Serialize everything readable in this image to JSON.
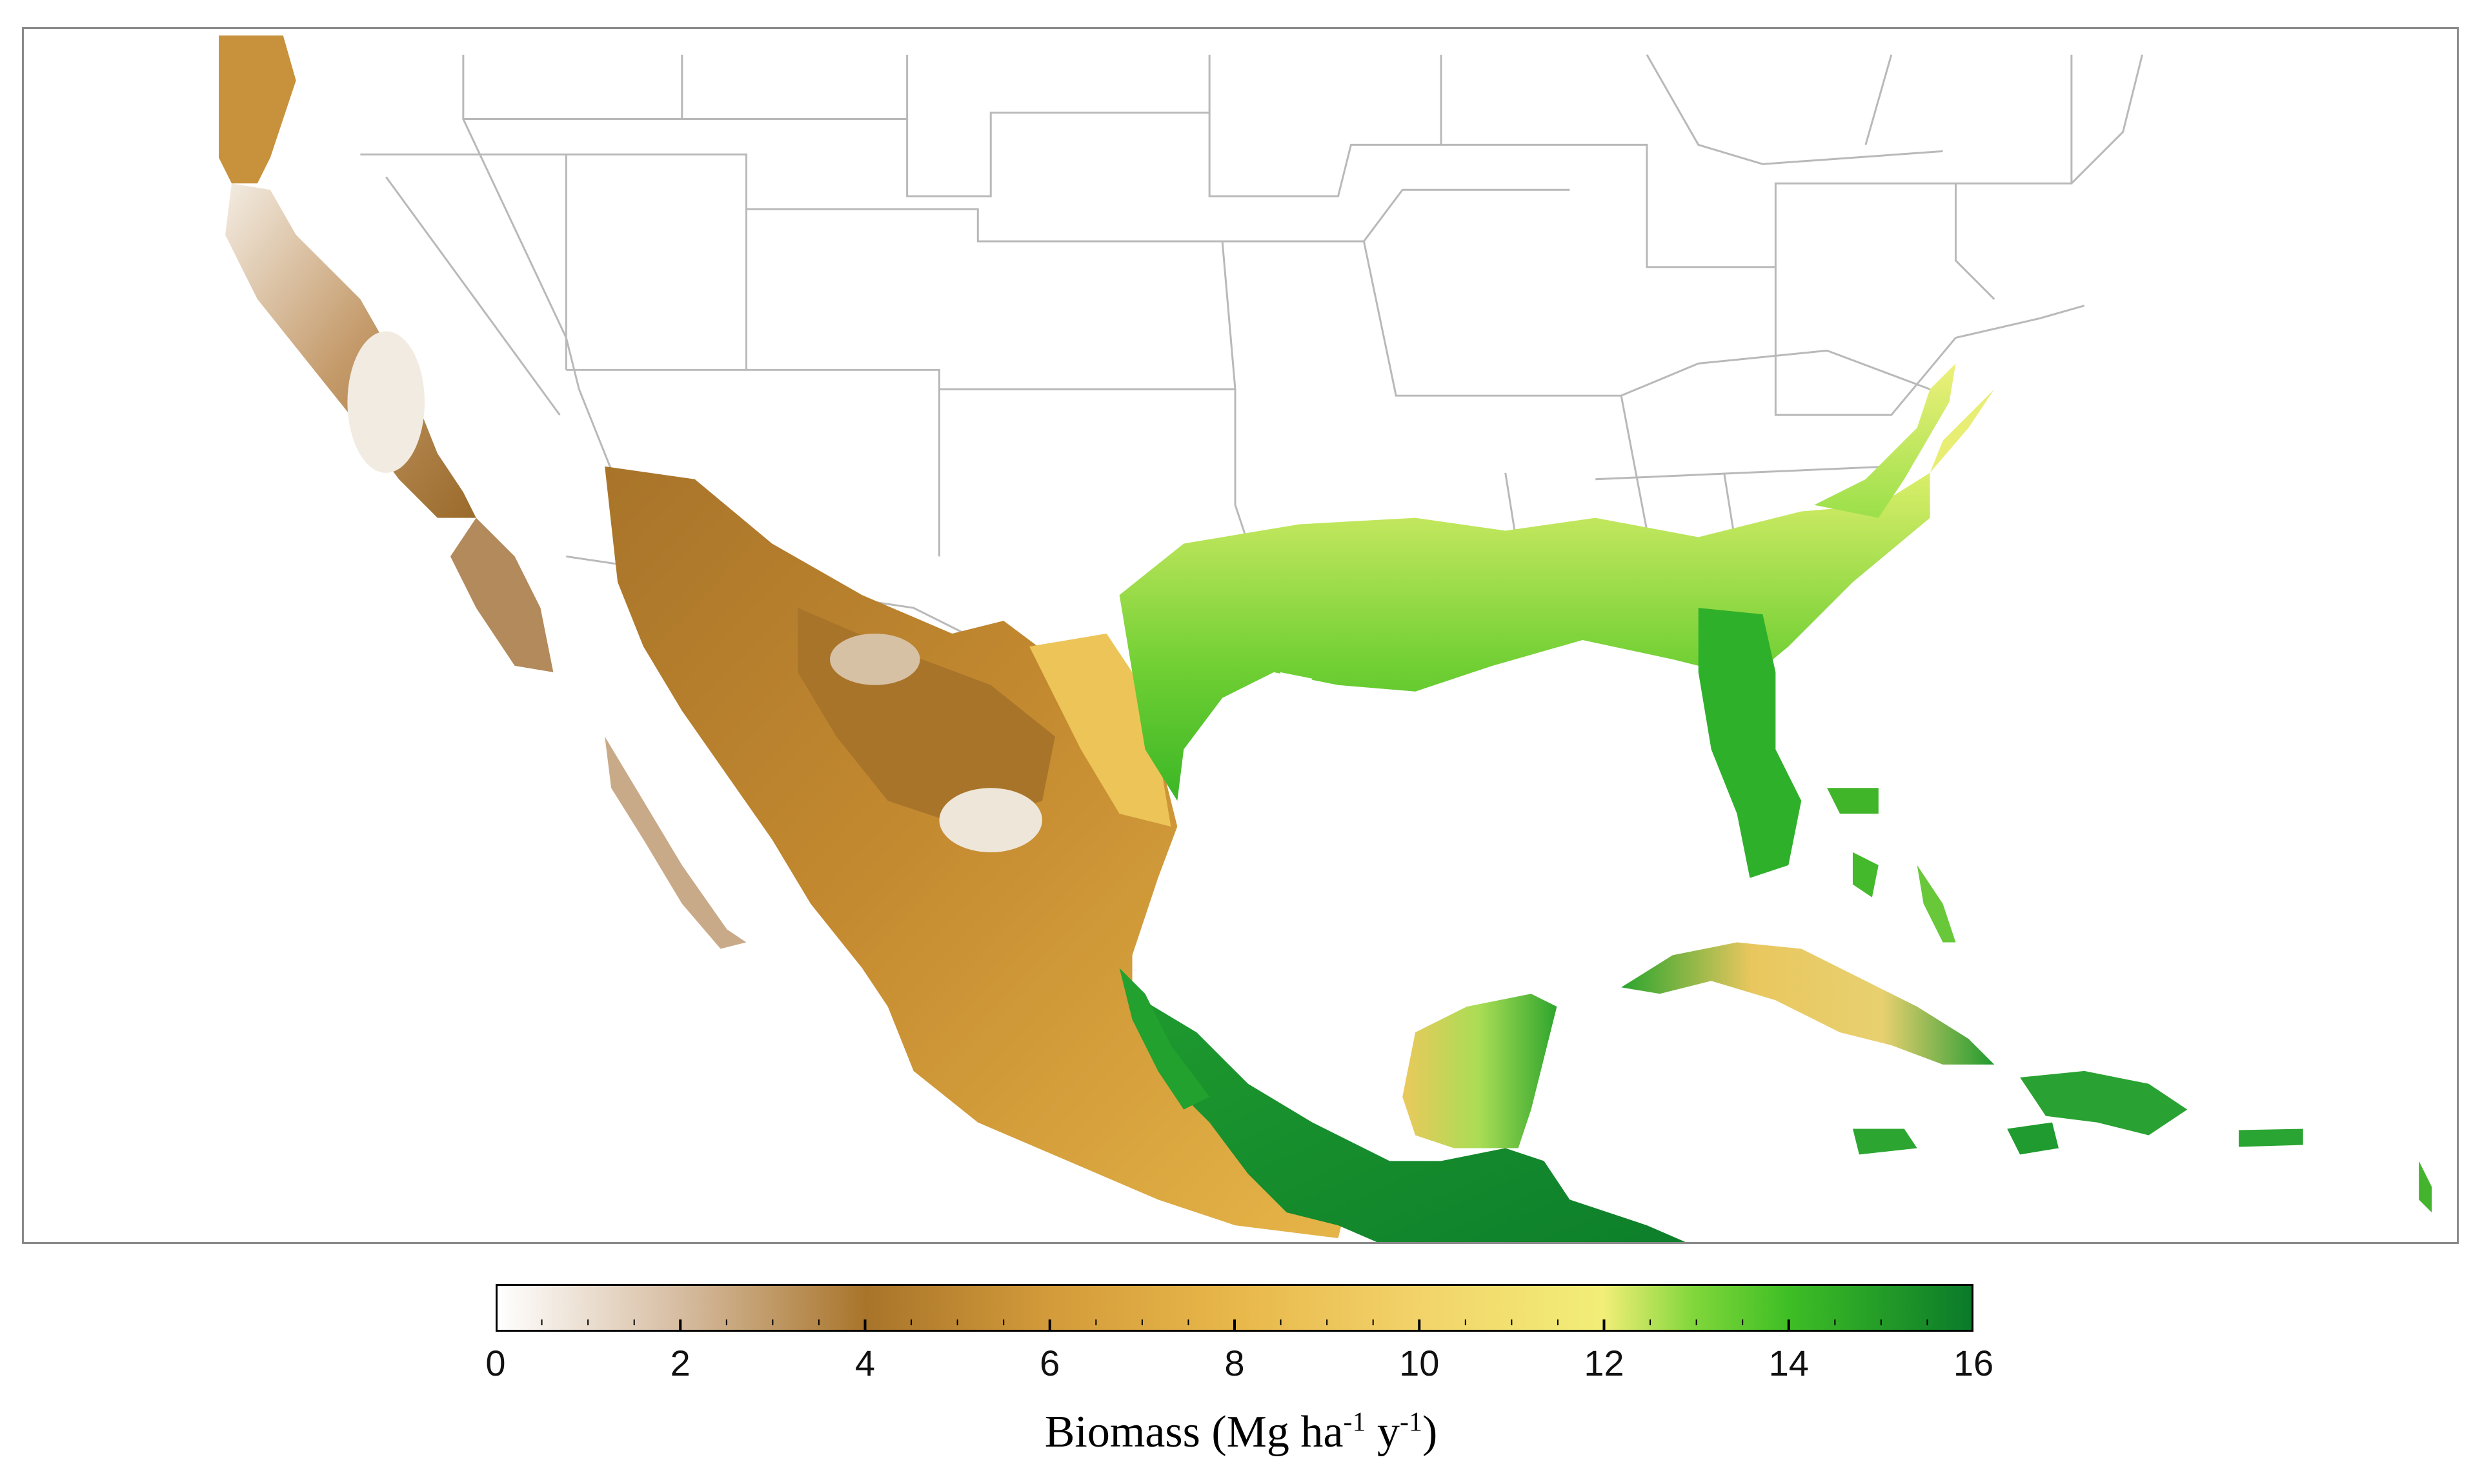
{
  "map": {
    "regions": [
      "southern United States",
      "Mexico",
      "Central America",
      "Caribbean"
    ]
  },
  "legend": {
    "title_parts": {
      "prefix": "Biomass (Mg ha",
      "exp1": "-1",
      "mid": " y",
      "exp2": "-1",
      "suffix": ")"
    },
    "min": 0,
    "max": 16,
    "tick_labels": [
      "0",
      "2",
      "4",
      "6",
      "8",
      "10",
      "12",
      "14",
      "16"
    ],
    "tick_values": [
      0,
      2,
      4,
      6,
      8,
      10,
      12,
      14,
      16
    ],
    "colors": {
      "0": "#ffffff",
      "2": "#d6bca0",
      "4": "#a8742a",
      "6": "#d39b3a",
      "8": "#e8b74a",
      "10": "#f2d36a",
      "12": "#f2ee78",
      "13": "#7fd63a",
      "14": "#3fbf25",
      "16": "#0a7a2a"
    }
  }
}
